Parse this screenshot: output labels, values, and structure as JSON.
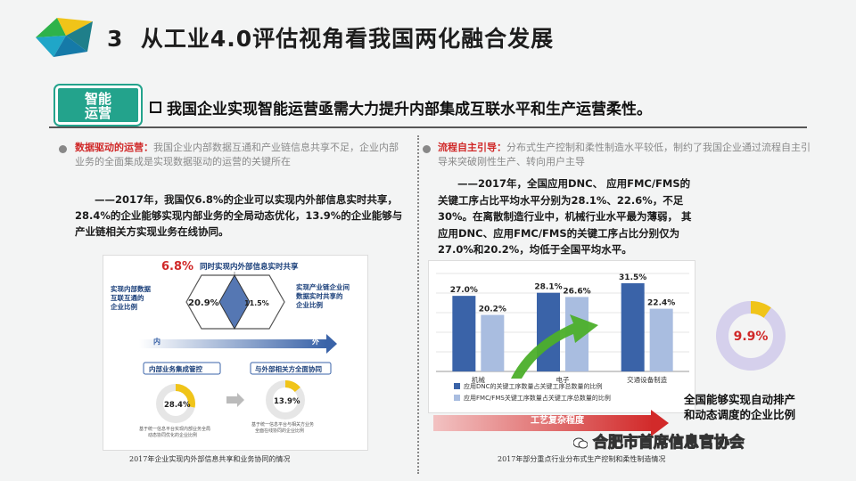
{
  "header": {
    "number": "3",
    "title": "从工业4.0评估视角看我国两化融合发展"
  },
  "badge": {
    "line1": "智能",
    "line2": "运营"
  },
  "subheading": "我国企业实现智能运营亟需大力提升内部集成互联水平和生产运营柔性。",
  "left": {
    "lead_red": "数据驱动的运营：",
    "lead_gray": "我国企业内部数据互通和产业链信息共享不足，企业内部业务的全面集成是实现数据驱动的运营的关键所在",
    "body": "——2017年，我国仅6.8%的企业可以实现内外部信息实时共享，28.4%的企业能够实现内部业务的全局动态优化，13.9%的企业能够与产业链相关方实现业务在线协同。",
    "figure": {
      "big_value": "6.8%",
      "top_label": "同时实现内外部信息实时共享",
      "left_label": "实现内部数据互联互通的企业比例",
      "right_label": "实现产业链企业间数据实时共享的企业比例",
      "left_value": "20.9%",
      "right_value": "11.5%",
      "inner": "内",
      "outer": "外",
      "box1": "内部业务集成管控",
      "box2": "与外部相关方全面协同",
      "donut1_value": "28.4%",
      "donut2_value": "13.9%",
      "note1": "基于统一信息平台实现内部业务全局动态协同优化的企业比例",
      "note2": "基于统一信息平台与相关方业务全面在线协同的企业比例"
    },
    "caption": "2017年企业实现内外部信息共享和业务协同的情况"
  },
  "right": {
    "lead_red": "流程自主引导：",
    "lead_gray": "分布式生产控制和柔性制造水平较低，制约了我国企业通过流程自主引导来突破刚性生产、转向用户主导",
    "body": "——2017年，全国应用DNC、 应用FMC/FMS的关键工序占比平均水平分别为28.1%、22.6%，不足30%。在离散制造行业中，机械行业水平最为薄弱， 其应用DNC、应用FMC/FMS的关键工序占比分别仅为27.0%和20.2%，均低于全国平均水平。",
    "legend_dnc": "应用DNC的关键工序数量占关键工序总数量的比例",
    "legend_fmc": "应用FMC/FMS关键工序数量占关键工序总数量的比例",
    "arrow_label": "工艺复杂程度",
    "donut_value": "9.9%",
    "donut_label_1": "全国能够实现自动排产",
    "donut_label_2": "和动态调度的企业比例",
    "caption": "2017年部分重点行业分布式生产控制和柔性制造情况"
  },
  "chart_data": {
    "type": "bar",
    "categories": [
      "机械",
      "电子",
      "交通设备制造"
    ],
    "series": [
      {
        "name": "应用DNC的关键工序数量占关键工序总数量的比例",
        "values": [
          27.0,
          28.1,
          31.5
        ],
        "labels": [
          "27.0%",
          "28.1%",
          "31.5%"
        ],
        "color": "#3a63a8"
      },
      {
        "name": "应用FMC/FMS关键工序数量占关键工序总数量的比例",
        "values": [
          20.2,
          26.6,
          22.4
        ],
        "labels": [
          "20.2%",
          "26.6%",
          "22.4%"
        ],
        "color": "#a9bde0"
      }
    ],
    "ylim": [
      0,
      35
    ],
    "grid": true
  },
  "watermark": "合肥市首席信息官协会",
  "colors": {
    "accent": "#23a38c",
    "red": "#d02828",
    "bar_dark": "#3a63a8",
    "bar_light": "#a9bde0"
  }
}
